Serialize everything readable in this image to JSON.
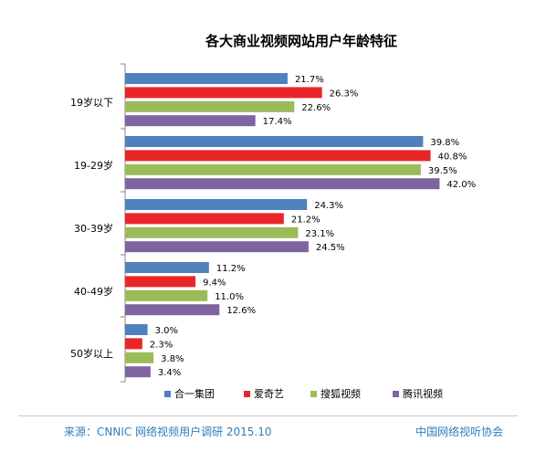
{
  "chart_data": {
    "type": "bar",
    "orientation": "horizontal",
    "title": "各大商业视频网站用户年龄特征",
    "categories": [
      "19岁以下",
      "19-29岁",
      "30-39岁",
      "40-49岁",
      "50岁以上"
    ],
    "series": [
      {
        "name": "合一集团",
        "color": "#4f81bd",
        "values": [
          21.7,
          39.8,
          24.3,
          11.2,
          3.0
        ],
        "labels": [
          "21.7%",
          "39.8%",
          "24.3%",
          "11.2%",
          "3.0%"
        ]
      },
      {
        "name": "爱奇艺",
        "color": "#e8262a",
        "values": [
          26.3,
          40.8,
          21.2,
          9.4,
          2.3
        ],
        "labels": [
          "26.3%",
          "40.8%",
          "21.2%",
          "9.4%",
          "2.3%"
        ]
      },
      {
        "name": "搜狐视频",
        "color": "#9bbb59",
        "values": [
          22.6,
          39.5,
          23.1,
          11.0,
          3.8
        ],
        "labels": [
          "22.6%",
          "39.5%",
          "23.1%",
          "11.0%",
          "3.8%"
        ]
      },
      {
        "name": "腾讯视频",
        "color": "#8064a2",
        "values": [
          17.4,
          42.0,
          24.5,
          12.6,
          3.4
        ],
        "labels": [
          "17.4%",
          "42.0%",
          "24.5%",
          "12.6%",
          "3.4%"
        ]
      }
    ],
    "xlim": [
      0,
      50
    ],
    "grid": false,
    "legend_position": "bottom"
  },
  "footer": {
    "source": "来源：CNNIC 网络视频用户调研   2015.10",
    "org": "中国网络视听协会"
  }
}
